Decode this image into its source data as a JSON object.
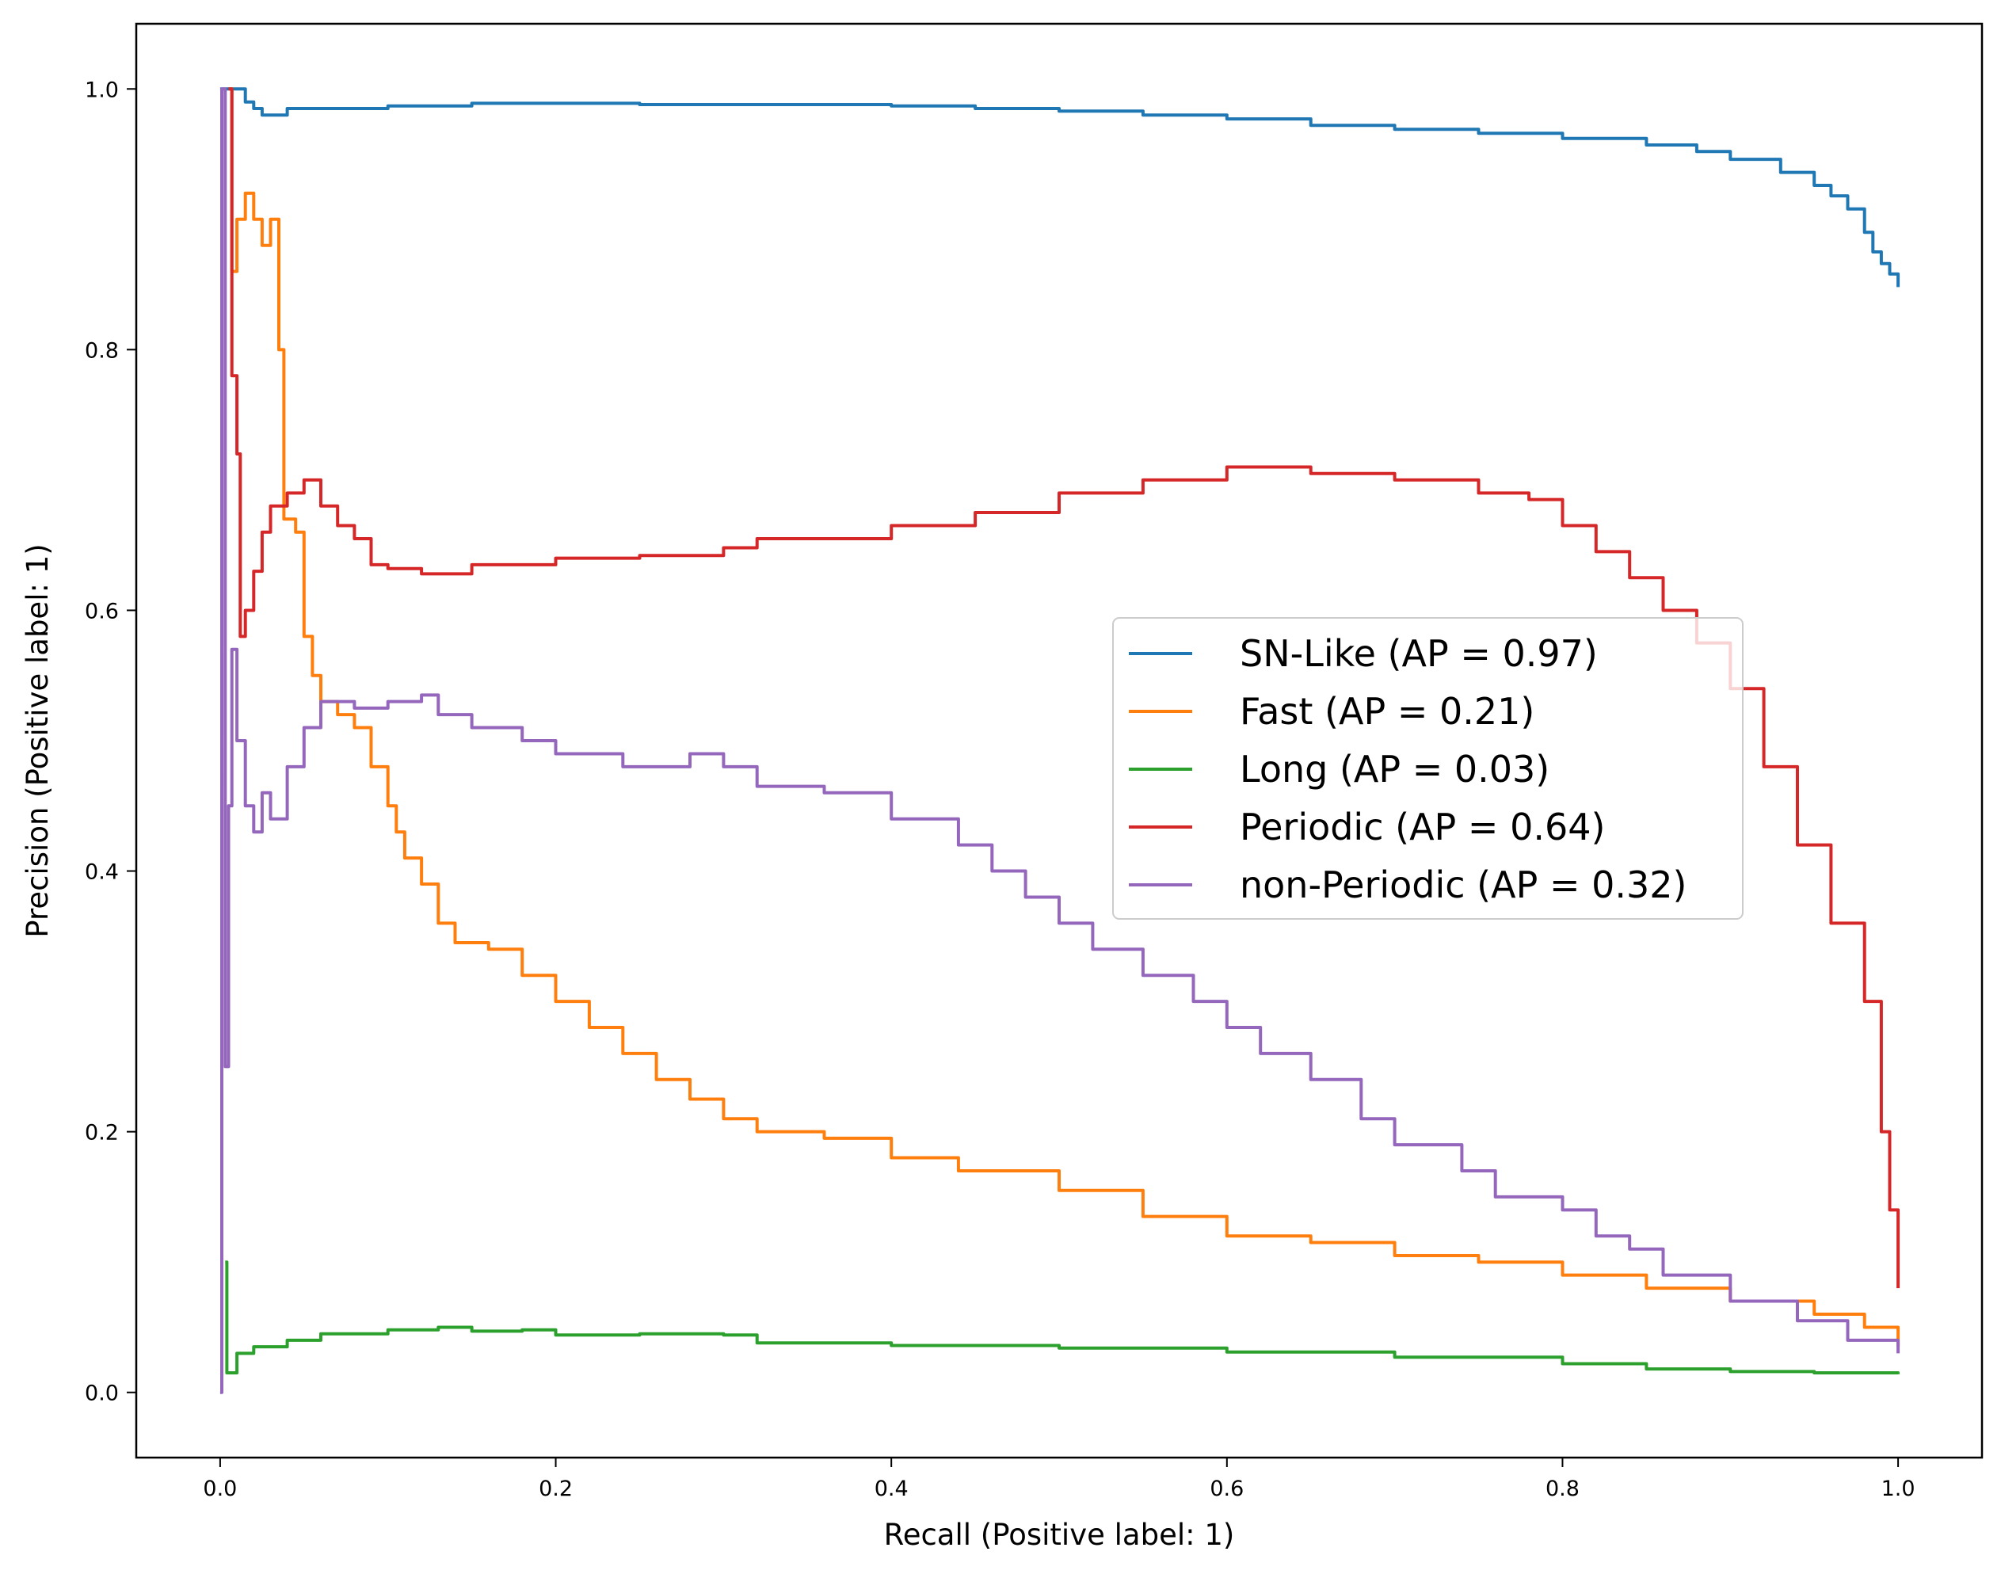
{
  "chart_data": {
    "type": "line",
    "title": "",
    "xlabel": "Recall (Positive label: 1)",
    "ylabel": "Precision (Positive label: 1)",
    "xlim": [
      -0.05,
      1.05
    ],
    "ylim": [
      -0.05,
      1.05
    ],
    "grid": false,
    "legend_position": "center-right",
    "x_ticks": [
      {
        "value": 0.0,
        "label": "0.0"
      },
      {
        "value": 0.2,
        "label": "0.2"
      },
      {
        "value": 0.4,
        "label": "0.4"
      },
      {
        "value": 0.6,
        "label": "0.6"
      },
      {
        "value": 0.8,
        "label": "0.8"
      },
      {
        "value": 1.0,
        "label": "1.0"
      }
    ],
    "y_ticks": [
      {
        "value": 0.0,
        "label": "0.0"
      },
      {
        "value": 0.2,
        "label": "0.2"
      },
      {
        "value": 0.4,
        "label": "0.4"
      },
      {
        "value": 0.6,
        "label": "0.6"
      },
      {
        "value": 0.8,
        "label": "0.8"
      },
      {
        "value": 1.0,
        "label": "1.0"
      }
    ],
    "series": [
      {
        "name": "SN-Like (AP = 0.97)",
        "color": "#1f77b4",
        "points": [
          [
            0,
            1.0
          ],
          [
            0.01,
            1.0
          ],
          [
            0.015,
            0.99
          ],
          [
            0.02,
            0.985
          ],
          [
            0.025,
            0.98
          ],
          [
            0.04,
            0.985
          ],
          [
            0.1,
            0.987
          ],
          [
            0.15,
            0.989
          ],
          [
            0.25,
            0.988
          ],
          [
            0.3,
            0.988
          ],
          [
            0.4,
            0.987
          ],
          [
            0.45,
            0.985
          ],
          [
            0.5,
            0.983
          ],
          [
            0.55,
            0.98
          ],
          [
            0.6,
            0.977
          ],
          [
            0.65,
            0.972
          ],
          [
            0.7,
            0.969
          ],
          [
            0.75,
            0.966
          ],
          [
            0.8,
            0.962
          ],
          [
            0.85,
            0.957
          ],
          [
            0.88,
            0.952
          ],
          [
            0.9,
            0.946
          ],
          [
            0.93,
            0.936
          ],
          [
            0.95,
            0.926
          ],
          [
            0.96,
            0.918
          ],
          [
            0.97,
            0.908
          ],
          [
            0.98,
            0.89
          ],
          [
            0.985,
            0.875
          ],
          [
            0.99,
            0.866
          ],
          [
            0.995,
            0.858
          ],
          [
            1.0,
            0.848
          ]
        ]
      },
      {
        "name": "Fast (AP = 0.21)",
        "color": "#ff7f0e",
        "points": [
          [
            0.005,
            1.0
          ],
          [
            0.007,
            0.86
          ],
          [
            0.01,
            0.9
          ],
          [
            0.015,
            0.92
          ],
          [
            0.02,
            0.9
          ],
          [
            0.025,
            0.88
          ],
          [
            0.03,
            0.9
          ],
          [
            0.035,
            0.8
          ],
          [
            0.038,
            0.67
          ],
          [
            0.045,
            0.66
          ],
          [
            0.05,
            0.58
          ],
          [
            0.055,
            0.55
          ],
          [
            0.06,
            0.53
          ],
          [
            0.07,
            0.52
          ],
          [
            0.08,
            0.51
          ],
          [
            0.09,
            0.48
          ],
          [
            0.1,
            0.45
          ],
          [
            0.105,
            0.43
          ],
          [
            0.11,
            0.41
          ],
          [
            0.12,
            0.39
          ],
          [
            0.13,
            0.36
          ],
          [
            0.14,
            0.345
          ],
          [
            0.16,
            0.34
          ],
          [
            0.18,
            0.32
          ],
          [
            0.2,
            0.3
          ],
          [
            0.22,
            0.28
          ],
          [
            0.24,
            0.26
          ],
          [
            0.26,
            0.24
          ],
          [
            0.28,
            0.225
          ],
          [
            0.3,
            0.21
          ],
          [
            0.32,
            0.2
          ],
          [
            0.36,
            0.195
          ],
          [
            0.4,
            0.18
          ],
          [
            0.44,
            0.17
          ],
          [
            0.5,
            0.155
          ],
          [
            0.55,
            0.135
          ],
          [
            0.6,
            0.12
          ],
          [
            0.65,
            0.115
          ],
          [
            0.7,
            0.105
          ],
          [
            0.75,
            0.1
          ],
          [
            0.8,
            0.09
          ],
          [
            0.85,
            0.08
          ],
          [
            0.9,
            0.07
          ],
          [
            0.95,
            0.06
          ],
          [
            0.98,
            0.05
          ],
          [
            1.0,
            0.035
          ]
        ]
      },
      {
        "name": "Long (AP = 0.03)",
        "color": "#2ca02c",
        "points": [
          [
            0.003,
            0.1
          ],
          [
            0.004,
            0.015
          ],
          [
            0.01,
            0.03
          ],
          [
            0.02,
            0.035
          ],
          [
            0.04,
            0.04
          ],
          [
            0.06,
            0.045
          ],
          [
            0.1,
            0.048
          ],
          [
            0.13,
            0.05
          ],
          [
            0.15,
            0.047
          ],
          [
            0.18,
            0.048
          ],
          [
            0.2,
            0.044
          ],
          [
            0.25,
            0.045
          ],
          [
            0.3,
            0.044
          ],
          [
            0.32,
            0.038
          ],
          [
            0.4,
            0.036
          ],
          [
            0.5,
            0.034
          ],
          [
            0.6,
            0.031
          ],
          [
            0.7,
            0.027
          ],
          [
            0.8,
            0.022
          ],
          [
            0.85,
            0.018
          ],
          [
            0.9,
            0.016
          ],
          [
            0.95,
            0.015
          ],
          [
            1.0,
            0.014
          ]
        ]
      },
      {
        "name": "Periodic (AP = 0.64)",
        "color": "#d62728",
        "points": [
          [
            0.005,
            1.0
          ],
          [
            0.007,
            0.78
          ],
          [
            0.01,
            0.72
          ],
          [
            0.012,
            0.58
          ],
          [
            0.015,
            0.6
          ],
          [
            0.02,
            0.63
          ],
          [
            0.025,
            0.66
          ],
          [
            0.03,
            0.68
          ],
          [
            0.04,
            0.69
          ],
          [
            0.05,
            0.7
          ],
          [
            0.06,
            0.68
          ],
          [
            0.07,
            0.665
          ],
          [
            0.08,
            0.655
          ],
          [
            0.09,
            0.635
          ],
          [
            0.1,
            0.632
          ],
          [
            0.12,
            0.628
          ],
          [
            0.15,
            0.635
          ],
          [
            0.2,
            0.64
          ],
          [
            0.25,
            0.642
          ],
          [
            0.3,
            0.648
          ],
          [
            0.32,
            0.655
          ],
          [
            0.35,
            0.655
          ],
          [
            0.4,
            0.665
          ],
          [
            0.45,
            0.675
          ],
          [
            0.5,
            0.69
          ],
          [
            0.55,
            0.7
          ],
          [
            0.6,
            0.71
          ],
          [
            0.65,
            0.705
          ],
          [
            0.7,
            0.7
          ],
          [
            0.75,
            0.69
          ],
          [
            0.78,
            0.685
          ],
          [
            0.8,
            0.665
          ],
          [
            0.82,
            0.645
          ],
          [
            0.84,
            0.625
          ],
          [
            0.86,
            0.6
          ],
          [
            0.88,
            0.575
          ],
          [
            0.9,
            0.54
          ],
          [
            0.92,
            0.48
          ],
          [
            0.94,
            0.42
          ],
          [
            0.96,
            0.36
          ],
          [
            0.98,
            0.3
          ],
          [
            0.99,
            0.2
          ],
          [
            0.995,
            0.14
          ],
          [
            1.0,
            0.08
          ]
        ]
      },
      {
        "name": "non-Periodic (AP = 0.32)",
        "color": "#9467bd",
        "points": [
          [
            0.0,
            0.0
          ],
          [
            0.001,
            1.0
          ],
          [
            0.003,
            0.25
          ],
          [
            0.005,
            0.45
          ],
          [
            0.007,
            0.57
          ],
          [
            0.01,
            0.5
          ],
          [
            0.015,
            0.45
          ],
          [
            0.02,
            0.43
          ],
          [
            0.025,
            0.46
          ],
          [
            0.03,
            0.44
          ],
          [
            0.04,
            0.48
          ],
          [
            0.05,
            0.51
          ],
          [
            0.06,
            0.53
          ],
          [
            0.08,
            0.525
          ],
          [
            0.1,
            0.53
          ],
          [
            0.12,
            0.535
          ],
          [
            0.13,
            0.52
          ],
          [
            0.15,
            0.51
          ],
          [
            0.18,
            0.5
          ],
          [
            0.2,
            0.49
          ],
          [
            0.22,
            0.49
          ],
          [
            0.24,
            0.48
          ],
          [
            0.28,
            0.49
          ],
          [
            0.3,
            0.48
          ],
          [
            0.32,
            0.465
          ],
          [
            0.36,
            0.46
          ],
          [
            0.4,
            0.44
          ],
          [
            0.44,
            0.42
          ],
          [
            0.46,
            0.4
          ],
          [
            0.48,
            0.38
          ],
          [
            0.5,
            0.36
          ],
          [
            0.52,
            0.34
          ],
          [
            0.55,
            0.32
          ],
          [
            0.58,
            0.3
          ],
          [
            0.6,
            0.28
          ],
          [
            0.62,
            0.26
          ],
          [
            0.65,
            0.24
          ],
          [
            0.68,
            0.21
          ],
          [
            0.7,
            0.19
          ],
          [
            0.74,
            0.17
          ],
          [
            0.76,
            0.15
          ],
          [
            0.8,
            0.14
          ],
          [
            0.82,
            0.12
          ],
          [
            0.84,
            0.11
          ],
          [
            0.86,
            0.09
          ],
          [
            0.9,
            0.07
          ],
          [
            0.94,
            0.055
          ],
          [
            0.97,
            0.04
          ],
          [
            1.0,
            0.03
          ]
        ]
      }
    ]
  }
}
